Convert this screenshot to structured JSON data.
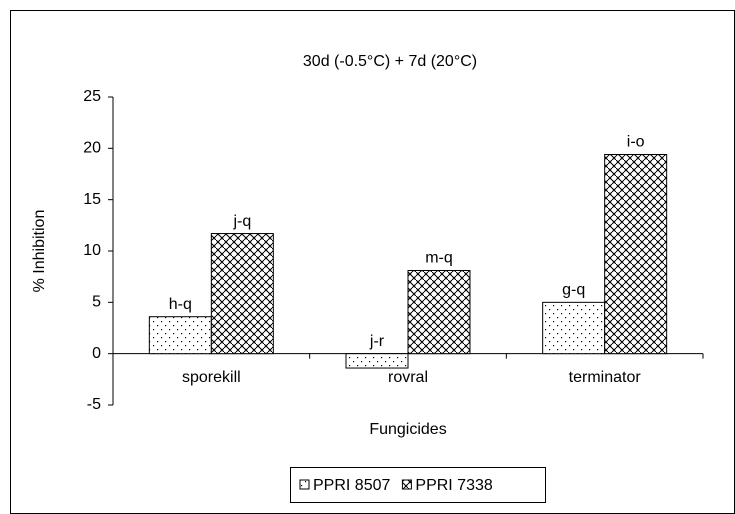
{
  "chart_data": {
    "type": "bar",
    "title": "30d (-0.5°C) + 7d (20°C)",
    "x_label": "Fungicides",
    "y_label": "% Inhibition",
    "categories": [
      "sporekill",
      "rovral",
      "terminator"
    ],
    "series": [
      {
        "name": "PPRI 8507",
        "color": "#000000",
        "pattern": "dots",
        "values": [
          3.6,
          -1.4,
          5.0
        ],
        "annotations": [
          "h-q",
          "j-r",
          "g-q"
        ]
      },
      {
        "name": "PPRI 7338",
        "color": "#000000",
        "pattern": "weave",
        "values": [
          11.7,
          8.1,
          19.4
        ],
        "annotations": [
          "j-q",
          "m-q",
          "i-o"
        ]
      }
    ],
    "ylim": [
      -5,
      25
    ],
    "yticks": [
      -5,
      0,
      5,
      10,
      15,
      20,
      25
    ],
    "legend": "bottom"
  }
}
